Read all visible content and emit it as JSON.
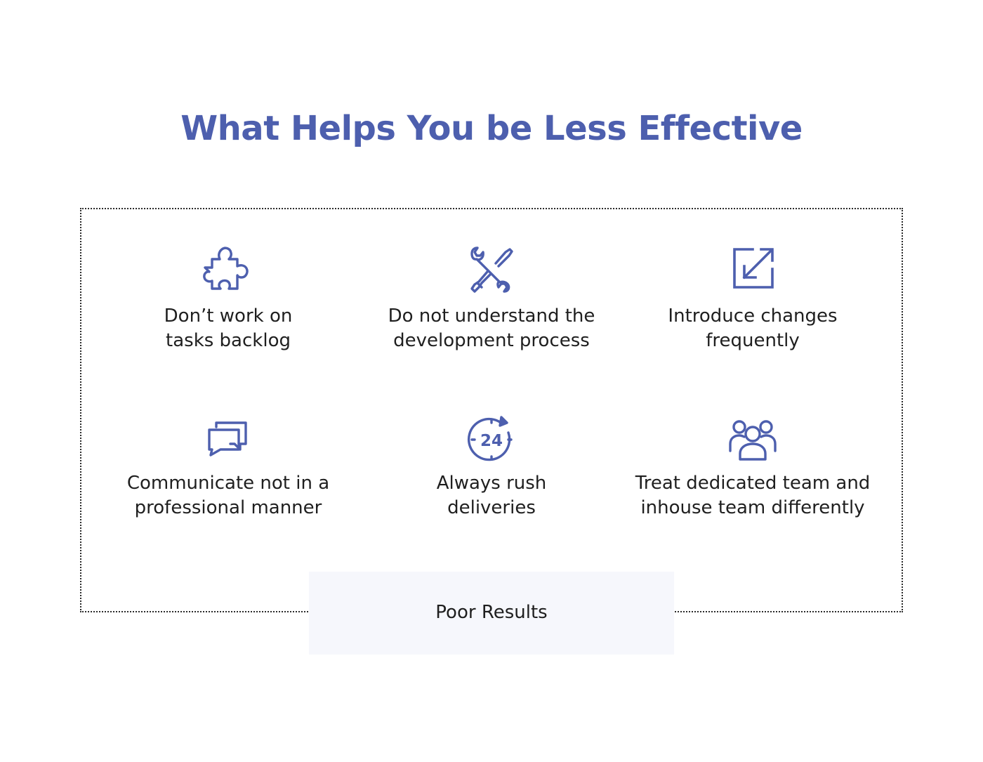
{
  "title": "What Helps You be Less Effective",
  "accent_color": "#4d5fae",
  "items": [
    {
      "icon": "puzzle-piece-icon",
      "label": "Don’t work on\ntasks backlog"
    },
    {
      "icon": "wrench-screwdriver-icon",
      "label": "Do not understand the\ndevelopment process"
    },
    {
      "icon": "arrow-square-icon",
      "label": "Introduce changes\nfrequently"
    },
    {
      "icon": "chat-bubbles-icon",
      "label": "Communicate not in a\nprofessional manner"
    },
    {
      "icon": "clock-24-icon",
      "label": "Always rush\ndeliveries",
      "badge": "24"
    },
    {
      "icon": "team-icon",
      "label": "Treat dedicated team and\ninhouse team differently"
    }
  ],
  "result": {
    "label": "Poor Results"
  }
}
